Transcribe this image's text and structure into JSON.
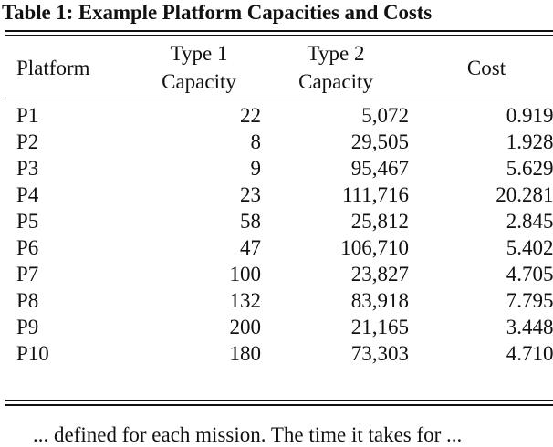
{
  "caption": "Table 1: Example Platform Capacities and Costs",
  "columns": {
    "platform": "Platform",
    "type1_line1": "Type 1",
    "type1_line2": "Capacity",
    "type2_line1": "Type 2",
    "type2_line2": "Capacity",
    "cost": "Cost"
  },
  "rows": [
    {
      "platform": "P1",
      "type1": "22",
      "type2": "5,072",
      "cost": "0.9199"
    },
    {
      "platform": "P2",
      "type1": "8",
      "type2": "29,505",
      "cost": "1.9282"
    },
    {
      "platform": "P3",
      "type1": "9",
      "type2": "95,467",
      "cost": "5.6292"
    },
    {
      "platform": "P4",
      "type1": "23",
      "type2": "111,716",
      "cost": "20.2813"
    },
    {
      "platform": "P5",
      "type1": "58",
      "type2": "25,812",
      "cost": "2.8454"
    },
    {
      "platform": "P6",
      "type1": "47",
      "type2": "106,710",
      "cost": "5.4026"
    },
    {
      "platform": "P7",
      "type1": "100",
      "type2": "23,827",
      "cost": "4.7058"
    },
    {
      "platform": "P8",
      "type1": "132",
      "type2": "83,918",
      "cost": "7.7959"
    },
    {
      "platform": "P9",
      "type1": "200",
      "type2": "21,165",
      "cost": "3.4486"
    },
    {
      "platform": "P10",
      "type1": "180",
      "type2": "73,303",
      "cost": "4.7107"
    }
  ],
  "footer_fragment": "... defined for each mission. The time it takes for ..."
}
